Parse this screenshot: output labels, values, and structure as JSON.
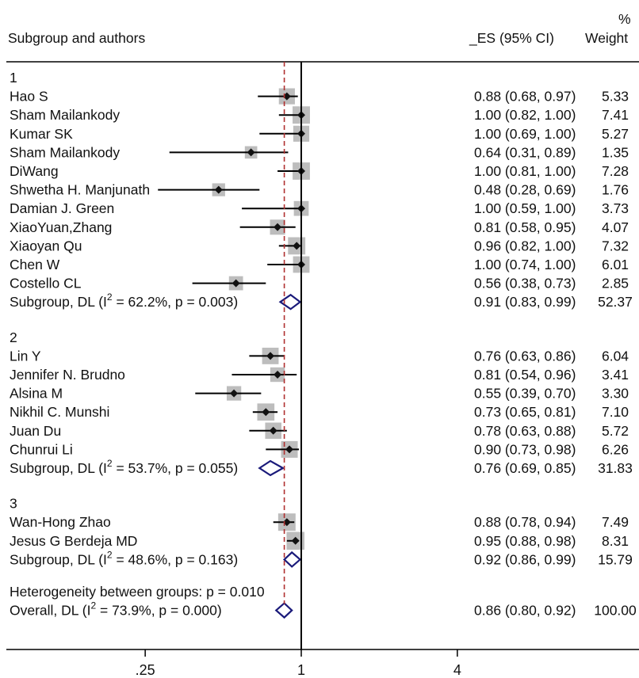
{
  "header": {
    "col1": "Subgroup and authors",
    "col2": "_ES (95% CI)",
    "col3_top": "%",
    "col3": "Weight"
  },
  "colors": {
    "line": "#000000",
    "box": "#bdbdbd",
    "diamond": "#1a1a7a",
    "ref_line": "#b03030"
  },
  "chart_data": {
    "type": "forest",
    "x_scale": "log",
    "x_ticks": [
      ".25",
      "1",
      "4"
    ],
    "x_tick_values": [
      0.25,
      1,
      4
    ],
    "null_line": 1,
    "overall_line": 0.86,
    "groups": [
      {
        "label": "1",
        "studies": [
          {
            "name": "Hao S",
            "es": 0.88,
            "lo": 0.68,
            "hi": 0.97,
            "weight": 5.33,
            "text": "0.88 (0.68, 0.97)",
            "w_text": "5.33"
          },
          {
            "name": "Sham Mailankody",
            "es": 1.0,
            "lo": 0.82,
            "hi": 1.0,
            "weight": 7.41,
            "text": "1.00 (0.82, 1.00)",
            "w_text": "7.41"
          },
          {
            "name": "Kumar SK",
            "es": 1.0,
            "lo": 0.69,
            "hi": 1.0,
            "weight": 5.27,
            "text": "1.00 (0.69, 1.00)",
            "w_text": "5.27"
          },
          {
            "name": "Sham Mailankody",
            "es": 0.64,
            "lo": 0.31,
            "hi": 0.89,
            "weight": 1.35,
            "text": "0.64 (0.31, 0.89)",
            "w_text": "1.35"
          },
          {
            "name": "DiWang",
            "es": 1.0,
            "lo": 0.81,
            "hi": 1.0,
            "weight": 7.28,
            "text": "1.00 (0.81, 1.00)",
            "w_text": "7.28"
          },
          {
            "name": "Shwetha H. Manjunath",
            "es": 0.48,
            "lo": 0.28,
            "hi": 0.69,
            "weight": 1.76,
            "text": "0.48 (0.28, 0.69)",
            "w_text": "1.76"
          },
          {
            "name": "Damian J. Green",
            "es": 1.0,
            "lo": 0.59,
            "hi": 1.0,
            "weight": 3.73,
            "text": "1.00 (0.59, 1.00)",
            "w_text": "3.73"
          },
          {
            "name": "XiaoYuan,Zhang",
            "es": 0.81,
            "lo": 0.58,
            "hi": 0.95,
            "weight": 4.07,
            "text": "0.81 (0.58, 0.95)",
            "w_text": "4.07"
          },
          {
            "name": "Xiaoyan Qu",
            "es": 0.96,
            "lo": 0.82,
            "hi": 1.0,
            "weight": 7.32,
            "text": "0.96 (0.82, 1.00)",
            "w_text": "7.32"
          },
          {
            "name": "Chen W",
            "es": 1.0,
            "lo": 0.74,
            "hi": 1.0,
            "weight": 6.01,
            "text": "1.00 (0.74, 1.00)",
            "w_text": "6.01"
          },
          {
            "name": "Costello CL",
            "es": 0.56,
            "lo": 0.38,
            "hi": 0.73,
            "weight": 2.85,
            "text": "0.56 (0.38, 0.73)",
            "w_text": "2.85"
          }
        ],
        "subtotal": {
          "label_pre": "Subgroup, DL (I",
          "sup": "2",
          "label_post": " = 62.2%, p = 0.003)",
          "es": 0.91,
          "lo": 0.83,
          "hi": 0.99,
          "text": "0.91 (0.83, 0.99)",
          "w_text": "52.37"
        }
      },
      {
        "label": "2",
        "studies": [
          {
            "name": "Lin Y",
            "es": 0.76,
            "lo": 0.63,
            "hi": 0.86,
            "weight": 6.04,
            "text": "0.76 (0.63, 0.86)",
            "w_text": "6.04"
          },
          {
            "name": "Jennifer N. Brudno",
            "es": 0.81,
            "lo": 0.54,
            "hi": 0.96,
            "weight": 3.41,
            "text": "0.81 (0.54, 0.96)",
            "w_text": "3.41"
          },
          {
            "name": "Alsina M",
            "es": 0.55,
            "lo": 0.39,
            "hi": 0.7,
            "weight": 3.3,
            "text": "0.55 (0.39, 0.70)",
            "w_text": "3.30"
          },
          {
            "name": "Nikhil C. Munshi",
            "es": 0.73,
            "lo": 0.65,
            "hi": 0.81,
            "weight": 7.1,
            "text": "0.73 (0.65, 0.81)",
            "w_text": "7.10"
          },
          {
            "name": "Juan Du",
            "es": 0.78,
            "lo": 0.63,
            "hi": 0.88,
            "weight": 5.72,
            "text": "0.78 (0.63, 0.88)",
            "w_text": "5.72"
          },
          {
            "name": "Chunrui Li",
            "es": 0.9,
            "lo": 0.73,
            "hi": 0.98,
            "weight": 6.26,
            "text": "0.90 (0.73, 0.98)",
            "w_text": "6.26"
          }
        ],
        "subtotal": {
          "label_pre": "Subgroup, DL (I",
          "sup": "2",
          "label_post": " = 53.7%, p = 0.055)",
          "es": 0.76,
          "lo": 0.69,
          "hi": 0.85,
          "text": "0.76 (0.69, 0.85)",
          "w_text": "31.83"
        }
      },
      {
        "label": "3",
        "studies": [
          {
            "name": "Wan-Hong Zhao",
            "es": 0.88,
            "lo": 0.78,
            "hi": 0.94,
            "weight": 7.49,
            "text": "0.88 (0.78, 0.94)",
            "w_text": "7.49"
          },
          {
            "name": "Jesus G Berdeja MD",
            "es": 0.95,
            "lo": 0.88,
            "hi": 0.98,
            "weight": 8.31,
            "text": "0.95 (0.88, 0.98)",
            "w_text": "8.31"
          }
        ],
        "subtotal": {
          "label_pre": "Subgroup, DL (I",
          "sup": "2",
          "label_post": " = 48.6%, p = 0.163)",
          "es": 0.92,
          "lo": 0.86,
          "hi": 0.99,
          "text": "0.92 (0.86, 0.99)",
          "w_text": "15.79"
        }
      }
    ],
    "heterogeneity": "Heterogeneity between groups: p = 0.010",
    "overall": {
      "label_pre": "Overall, DL (I",
      "sup": "2",
      "label_post": " = 73.9%, p = 0.000)",
      "es": 0.86,
      "lo": 0.8,
      "hi": 0.92,
      "text": "0.86 (0.80, 0.92)",
      "w_text": "100.00"
    }
  }
}
